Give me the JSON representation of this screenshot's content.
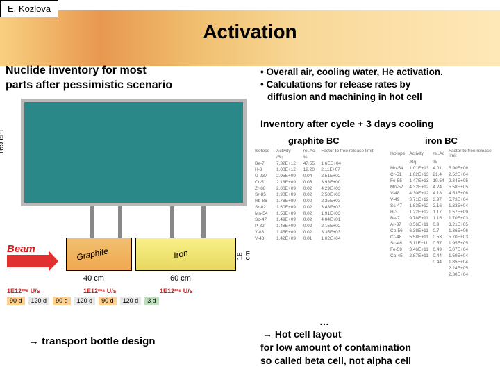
{
  "author": "E. Kozlova",
  "title": "Activation",
  "left_heading_l1": "Nuclide inventory for most",
  "left_heading_l2": "parts after pessimistic scenario",
  "bullets": {
    "b1": "• Overall air, cooling water, He activation.",
    "b2": "• Calculations for release rates by",
    "b3": "  diffusion and machining in hot cell"
  },
  "inventory_heading": "Inventory after cycle + 3 days cooling",
  "graphite_label": "graphite BC",
  "iron_label": "iron BC",
  "diagram": {
    "y_label": "169 cm",
    "beam_label": "Beam",
    "graphite_text": "Graphite",
    "iron_text": "Iron",
    "dim_40": "40 cm",
    "dim_60": "60 cm",
    "dim_16": "16 cm",
    "colors": {
      "gray": "#b8b8b8",
      "teal": "#2a8888",
      "graphite_block": "#f0a850",
      "iron_block": "#e8d860",
      "beam": "#e03030"
    }
  },
  "timeline": {
    "u1": "1E12²³⁸ U/s",
    "u2": "1E12²³⁸ U/s",
    "u3": "1E12²³⁸ U/s",
    "d90": "90 d",
    "d120": "120 d",
    "d3": "3 d"
  },
  "transport": "→ transport bottle design",
  "hotcell": {
    "l1a": "→ Hot cell layout",
    "l2": "for low amount of contamination",
    "l3": "so called beta cell, not alpha cell"
  },
  "ellipsis": "…",
  "table_headers": {
    "h1": "Isotope",
    "h2": "Activity",
    "h2u": "/Bq",
    "h3": "rel.Ac",
    "h3u": "%",
    "h4": "Factor to free release limit"
  },
  "graphite_rows": [
    [
      "Be-7",
      "7.32E+12",
      "47.55",
      "1.6EE+04"
    ],
    [
      "H-3",
      "1.00E+12",
      "12.20",
      "2.11E+07"
    ],
    [
      "U-237",
      "2.95E+09",
      "0.04",
      "2.51E+02"
    ],
    [
      "Cr-51",
      "2.18E+09",
      "0.03",
      "3.93E+00"
    ],
    [
      "Zr-88",
      "2.00E+09",
      "0.02",
      "4.29E+03"
    ],
    [
      "Sr-85",
      "1.90E+09",
      "0.02",
      "2.50E+03"
    ],
    [
      "Rb-86",
      "1.78E+09",
      "0.02",
      "2.35E+03"
    ],
    [
      "Sr-82",
      "1.60E+09",
      "0.02",
      "3.43E+03"
    ],
    [
      "Mn-54",
      "1.53E+09",
      "0.02",
      "1.91E+03"
    ],
    [
      "Sc-47",
      "1.49E+09",
      "0.02",
      "4.04E+01"
    ],
    [
      "P-32",
      "1.48E+09",
      "0.02",
      "2.15E+02"
    ],
    [
      "Y-88",
      "1.45E+09",
      "0.02",
      "3.35E+03"
    ],
    [
      "V-48",
      "1.42E+09",
      "0.01",
      "1.02E+04"
    ]
  ],
  "iron_rows": [
    [
      "Mn-54",
      "1.01E+13",
      "4.01",
      "5.90E+06"
    ],
    [
      "Cr-51",
      "1.02E+13",
      "21.4",
      "2.52E+04"
    ],
    [
      "Fe-55",
      "1.47E+13",
      "19.54",
      "2.34E+05"
    ],
    [
      "Mn-52",
      "4.32E+12",
      "4.24",
      "5.58E+05"
    ],
    [
      "V-48",
      "4.30E+12",
      "4.18",
      "4.53E+06"
    ],
    [
      "V-49",
      "3.71E+12",
      "3.97",
      "5.73E+04"
    ],
    [
      "Sc-47",
      "1.83E+12",
      "2.16",
      "1.83E+04"
    ],
    [
      "H-3",
      "1.22E+12",
      "1.17",
      "1.57E+09"
    ],
    [
      "Be-7",
      "9.78E+11",
      "1.15",
      "1.70E+03"
    ],
    [
      "Ar-37",
      "8.56E+11",
      "0.9",
      "3.21E+05"
    ],
    [
      "Co-56",
      "6.38E+11",
      "0.7",
      "1.36E+06"
    ],
    [
      "Cr-48",
      "5.58E+11",
      "0.53",
      "5.70E+03"
    ],
    [
      "Sc-46",
      "5.11E+11",
      "0.57",
      "1.95E+05"
    ],
    [
      "Fe-59",
      "3.46E+11",
      "0.49",
      "5.07E+04"
    ],
    [
      "Ca-45",
      "2.87E+11",
      "0.44",
      "1.59E+04"
    ],
    [
      "",
      "",
      "0.44",
      "1.85E+04"
    ],
    [
      "",
      "",
      "",
      "2.24E+05"
    ],
    [
      "",
      "",
      "",
      "2.30E+04"
    ]
  ]
}
